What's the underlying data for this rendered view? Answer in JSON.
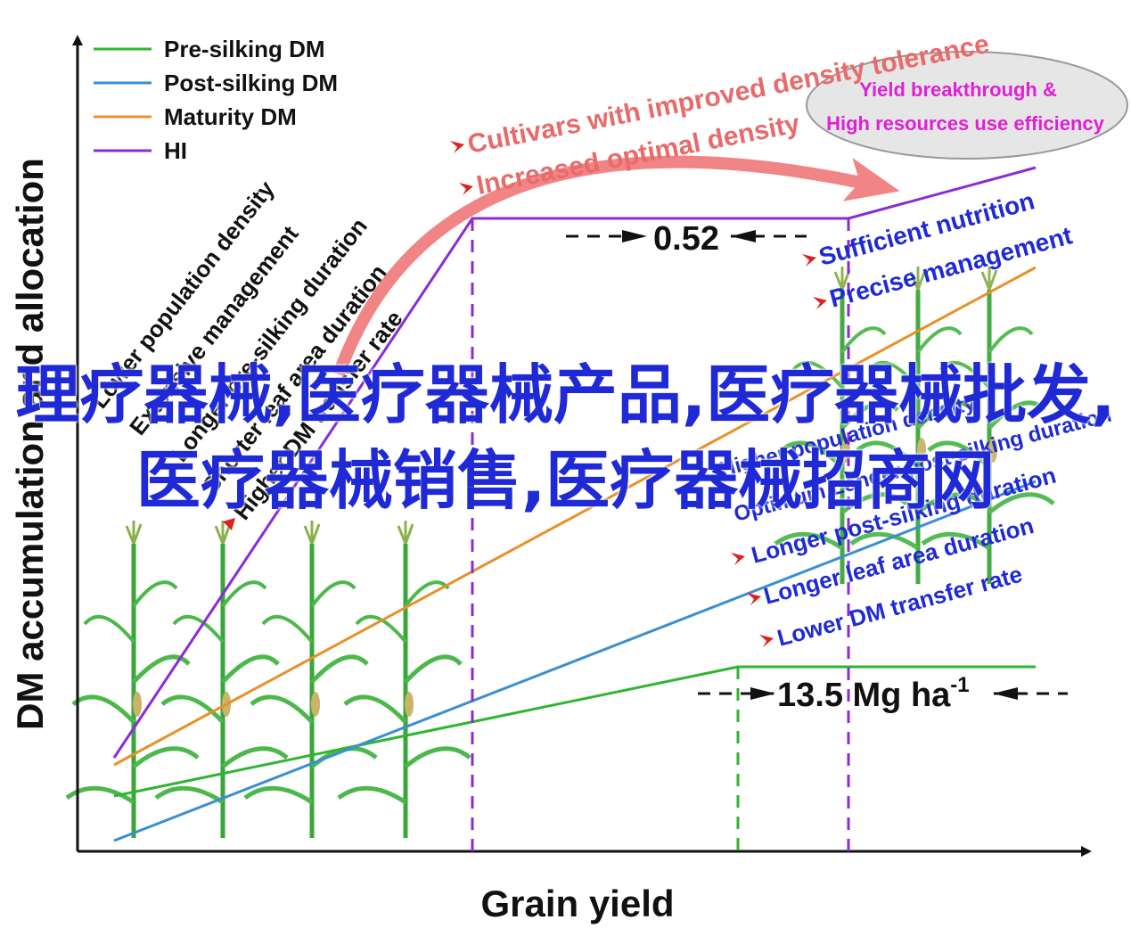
{
  "axes": {
    "x_label": "Grain yield",
    "y_label": "DM accumulation and allocation"
  },
  "legend": [
    {
      "name": "Pre-silking DM",
      "color": "#2fb52f"
    },
    {
      "name": "Post-silking DM",
      "color": "#3b8fd1"
    },
    {
      "name": "Maturity DM",
      "color": "#e8902a"
    },
    {
      "name": "HI",
      "color": "#8a2bd6"
    }
  ],
  "annotations": {
    "hi_value": "0.52",
    "yield_value": "13.5 Mg ha",
    "yield_sup": "-1",
    "left_factors": [
      "Lower population density",
      "Extensive management",
      "Longer pre-silking duration",
      "Shorter leaf area duration",
      "Higher DM transfer rate"
    ],
    "middle_factors": [
      "Cultivars with improved density tolerance",
      "Increased optimal density"
    ],
    "ellipse_lines": [
      "Yield breakthrough &",
      "High resources use efficiency"
    ],
    "right_top_factors": [
      "Sufficient nutrition",
      "Precise management"
    ],
    "right_bottom_factors": [
      "Higher population density",
      "Optimum Longer post-silking duration",
      "Longer post-silking duration",
      "Longer leaf area duration",
      "Lower DM transfer rate"
    ]
  },
  "overlay_text": "理疗器械,医疗器械产品,医疗器械批发,医疗器械销售,医疗器械招商网",
  "colors": {
    "factor_text": "#1f2ad6",
    "highlight_text": "#e86a6a",
    "arrow": "#f07a7a",
    "ellipse_text": "#e01fd6",
    "ellipse_fill": "#e6e6e6",
    "plant": "#3aa63a"
  }
}
